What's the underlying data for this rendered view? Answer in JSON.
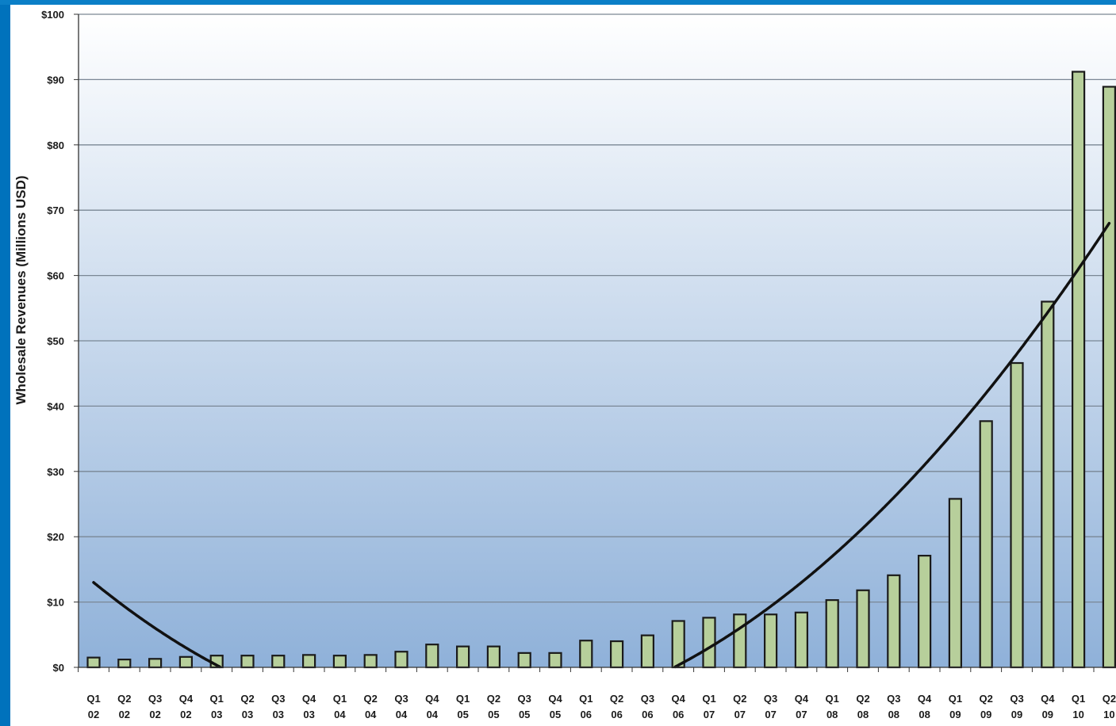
{
  "chart_data": {
    "type": "bar",
    "ylabel": "Wholesale Revenues (Millions USD)",
    "ylim": [
      0,
      100
    ],
    "yticks": [
      "$0",
      "$10",
      "$20",
      "$30",
      "$40",
      "$50",
      "$60",
      "$70",
      "$80",
      "$90",
      "$100"
    ],
    "categories": [
      [
        "Q1",
        "02"
      ],
      [
        "Q2",
        "02"
      ],
      [
        "Q3",
        "02"
      ],
      [
        "Q4",
        "02"
      ],
      [
        "Q1",
        "03"
      ],
      [
        "Q2",
        "03"
      ],
      [
        "Q3",
        "03"
      ],
      [
        "Q4",
        "03"
      ],
      [
        "Q1",
        "04"
      ],
      [
        "Q2",
        "04"
      ],
      [
        "Q3",
        "04"
      ],
      [
        "Q4",
        "04"
      ],
      [
        "Q1",
        "05"
      ],
      [
        "Q2",
        "05"
      ],
      [
        "Q3",
        "05"
      ],
      [
        "Q4",
        "05"
      ],
      [
        "Q1",
        "06"
      ],
      [
        "Q2",
        "06"
      ],
      [
        "Q3",
        "06"
      ],
      [
        "Q4",
        "06"
      ],
      [
        "Q1",
        "07"
      ],
      [
        "Q2",
        "07"
      ],
      [
        "Q3",
        "07"
      ],
      [
        "Q4",
        "07"
      ],
      [
        "Q1",
        "08"
      ],
      [
        "Q2",
        "08"
      ],
      [
        "Q3",
        "08"
      ],
      [
        "Q4",
        "08"
      ],
      [
        "Q1",
        "09"
      ],
      [
        "Q2",
        "09"
      ],
      [
        "Q3",
        "09"
      ],
      [
        "Q4",
        "09"
      ],
      [
        "Q1",
        "10"
      ],
      [
        "Q2",
        "10"
      ]
    ],
    "values": [
      1.5,
      1.2,
      1.3,
      1.6,
      1.8,
      1.8,
      1.8,
      1.9,
      1.8,
      1.9,
      2.4,
      3.5,
      3.2,
      3.2,
      2.2,
      2.2,
      4.1,
      4.0,
      4.9,
      7.1,
      7.6,
      8.1,
      8.1,
      8.4,
      10.3,
      11.8,
      14.1,
      17.1,
      25.8,
      37.7,
      46.6,
      56.0,
      91.2,
      88.9
    ],
    "trendline": {
      "type": "polynomial",
      "start_value": 13,
      "end_value": 68
    },
    "grid": true,
    "legend": "none",
    "colors": {
      "bar_fill": "#b7cf9b",
      "bar_stroke": "#1b1b1b",
      "trend": "#111111",
      "grid": "#7a8795",
      "bg_top": "#ffffff",
      "bg_bottom": "#8fb1d9",
      "frame_blue": "#0072bc"
    }
  }
}
